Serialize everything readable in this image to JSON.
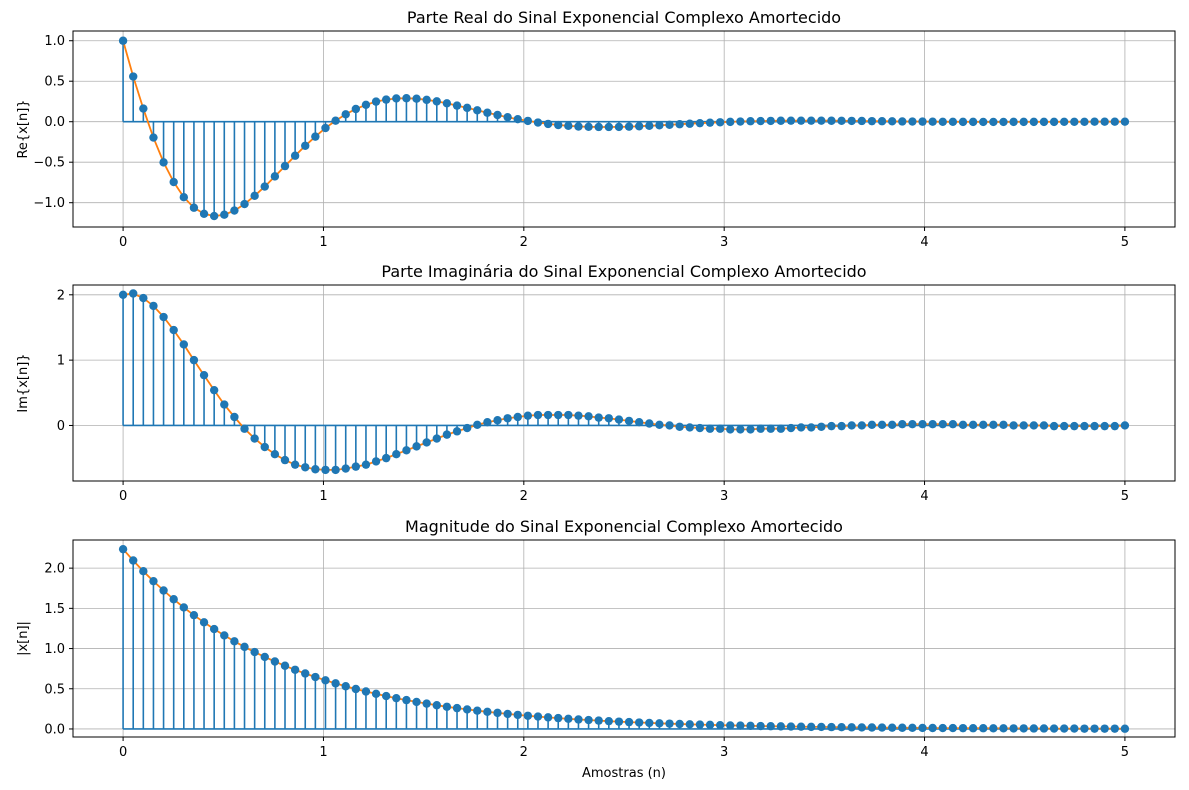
{
  "chart_data": [
    {
      "type": "stem",
      "title": "Parte Real do Sinal Exponencial Complexo Amortecido",
      "ylabel": "Re{x[n]}",
      "xlabel": "",
      "xlim": [
        -0.25,
        5.25
      ],
      "ylim": [
        -1.3,
        1.12
      ],
      "xticks": [
        0,
        1,
        2,
        3,
        4,
        5
      ],
      "yticks": [
        -1.0,
        -0.5,
        0.0,
        0.5,
        1.0
      ],
      "ytick_labels": [
        "−1.0",
        "−0.5",
        "0.0",
        "0.5",
        "1.0"
      ],
      "grid": true,
      "x_range": [
        0,
        5
      ],
      "n_points": 100,
      "values": [
        1.0,
        0.558,
        0.162,
        -0.196,
        -0.502,
        -0.745,
        -0.932,
        -1.062,
        -1.137,
        -1.165,
        -1.148,
        -1.097,
        -1.017,
        -0.915,
        -0.801,
        -0.675,
        -0.548,
        -0.42,
        -0.297,
        -0.184,
        -0.078,
        0.013,
        0.091,
        0.157,
        0.209,
        0.248,
        0.273,
        0.287,
        0.29,
        0.284,
        0.27,
        0.251,
        0.227,
        0.199,
        0.171,
        0.141,
        0.111,
        0.083,
        0.056,
        0.031,
        0.01,
        -0.01,
        -0.027,
        -0.041,
        -0.051,
        -0.059,
        -0.063,
        -0.065,
        -0.065,
        -0.064,
        -0.061,
        -0.056,
        -0.051,
        -0.044,
        -0.038,
        -0.031,
        -0.025,
        -0.018,
        -0.012,
        -0.007,
        -0.002,
        0.002,
        0.006,
        0.008,
        0.01,
        0.012,
        0.013,
        0.013,
        0.013,
        0.013,
        0.012,
        0.011,
        0.01,
        0.009,
        0.007,
        0.006,
        0.005,
        0.003,
        0.002,
        0.001,
        0.0,
        -0.001,
        -0.001,
        -0.002,
        -0.002,
        -0.003,
        -0.003,
        -0.003,
        -0.002,
        -0.002,
        -0.002,
        -0.002,
        -0.002,
        -0.001,
        -0.001,
        -0.001,
        0.0,
        0.0,
        0.0,
        0.0
      ]
    },
    {
      "type": "stem",
      "title": "Parte Imaginária do Sinal Exponencial Complexo Amortecido",
      "ylabel": "Im{x[n]}",
      "xlabel": "",
      "xlim": [
        -0.25,
        5.25
      ],
      "ylim": [
        -0.85,
        2.15
      ],
      "xticks": [
        0,
        1,
        2,
        3,
        4,
        5
      ],
      "yticks": [
        0,
        1,
        2
      ],
      "ytick_labels": [
        "0",
        "1",
        "2"
      ],
      "grid": true,
      "x_range": [
        0,
        5
      ],
      "n_points": 100,
      "values": [
        2.0,
        2.02,
        1.95,
        1.83,
        1.66,
        1.46,
        1.24,
        1.0,
        0.77,
        0.54,
        0.32,
        0.13,
        -0.05,
        -0.2,
        -0.33,
        -0.44,
        -0.53,
        -0.6,
        -0.64,
        -0.67,
        -0.68,
        -0.68,
        -0.66,
        -0.63,
        -0.6,
        -0.55,
        -0.5,
        -0.44,
        -0.38,
        -0.32,
        -0.26,
        -0.2,
        -0.14,
        -0.09,
        -0.04,
        0.01,
        0.05,
        0.08,
        0.11,
        0.13,
        0.15,
        0.16,
        0.16,
        0.16,
        0.16,
        0.15,
        0.14,
        0.12,
        0.11,
        0.09,
        0.07,
        0.05,
        0.03,
        0.01,
        0.0,
        -0.02,
        -0.03,
        -0.04,
        -0.05,
        -0.05,
        -0.06,
        -0.06,
        -0.06,
        -0.05,
        -0.05,
        -0.05,
        -0.04,
        -0.03,
        -0.03,
        -0.02,
        -0.01,
        -0.01,
        0.0,
        0.0,
        0.01,
        0.01,
        0.01,
        0.02,
        0.02,
        0.02,
        0.02,
        0.02,
        0.02,
        0.01,
        0.01,
        0.01,
        0.01,
        0.01,
        0.0,
        0.0,
        0.0,
        0.0,
        -0.01,
        -0.01,
        -0.01,
        -0.01,
        -0.01,
        -0.01,
        -0.01,
        0.0
      ]
    },
    {
      "type": "stem",
      "title": "Magnitude do Sinal Exponencial Complexo Amortecido",
      "ylabel": "|x[n]|",
      "xlabel": "Amostras (n)",
      "xlim": [
        -0.25,
        5.25
      ],
      "ylim": [
        -0.1,
        2.35
      ],
      "xticks": [
        0,
        1,
        2,
        3,
        4,
        5
      ],
      "yticks": [
        0.0,
        0.5,
        1.0,
        1.5,
        2.0
      ],
      "ytick_labels": [
        "0.0",
        "0.5",
        "1.0",
        "1.5",
        "2.0"
      ],
      "grid": true,
      "x_range": [
        0,
        5
      ],
      "n_points": 100,
      "values": [
        2.236,
        2.095,
        1.962,
        1.838,
        1.722,
        1.613,
        1.511,
        1.415,
        1.326,
        1.242,
        1.163,
        1.09,
        1.021,
        0.956,
        0.896,
        0.839,
        0.786,
        0.736,
        0.69,
        0.646,
        0.605,
        0.567,
        0.531,
        0.497,
        0.466,
        0.437,
        0.409,
        0.383,
        0.359,
        0.336,
        0.315,
        0.295,
        0.276,
        0.259,
        0.243,
        0.227,
        0.213,
        0.2,
        0.187,
        0.175,
        0.164,
        0.154,
        0.144,
        0.135,
        0.126,
        0.118,
        0.111,
        0.104,
        0.097,
        0.091,
        0.085,
        0.08,
        0.075,
        0.07,
        0.066,
        0.062,
        0.058,
        0.054,
        0.051,
        0.047,
        0.044,
        0.042,
        0.039,
        0.036,
        0.034,
        0.032,
        0.03,
        0.028,
        0.026,
        0.025,
        0.023,
        0.022,
        0.02,
        0.019,
        0.018,
        0.017,
        0.016,
        0.015,
        0.014,
        0.013,
        0.012,
        0.011,
        0.011,
        0.01,
        0.009,
        0.009,
        0.008,
        0.008,
        0.007,
        0.007,
        0.006,
        0.006,
        0.005,
        0.005,
        0.005,
        0.004,
        0.004,
        0.004,
        0.004,
        0.003
      ]
    }
  ],
  "colors": {
    "stem": "#1f77b4",
    "line": "#ff7f0e",
    "grid": "#b0b0b0",
    "axis": "#000000"
  }
}
